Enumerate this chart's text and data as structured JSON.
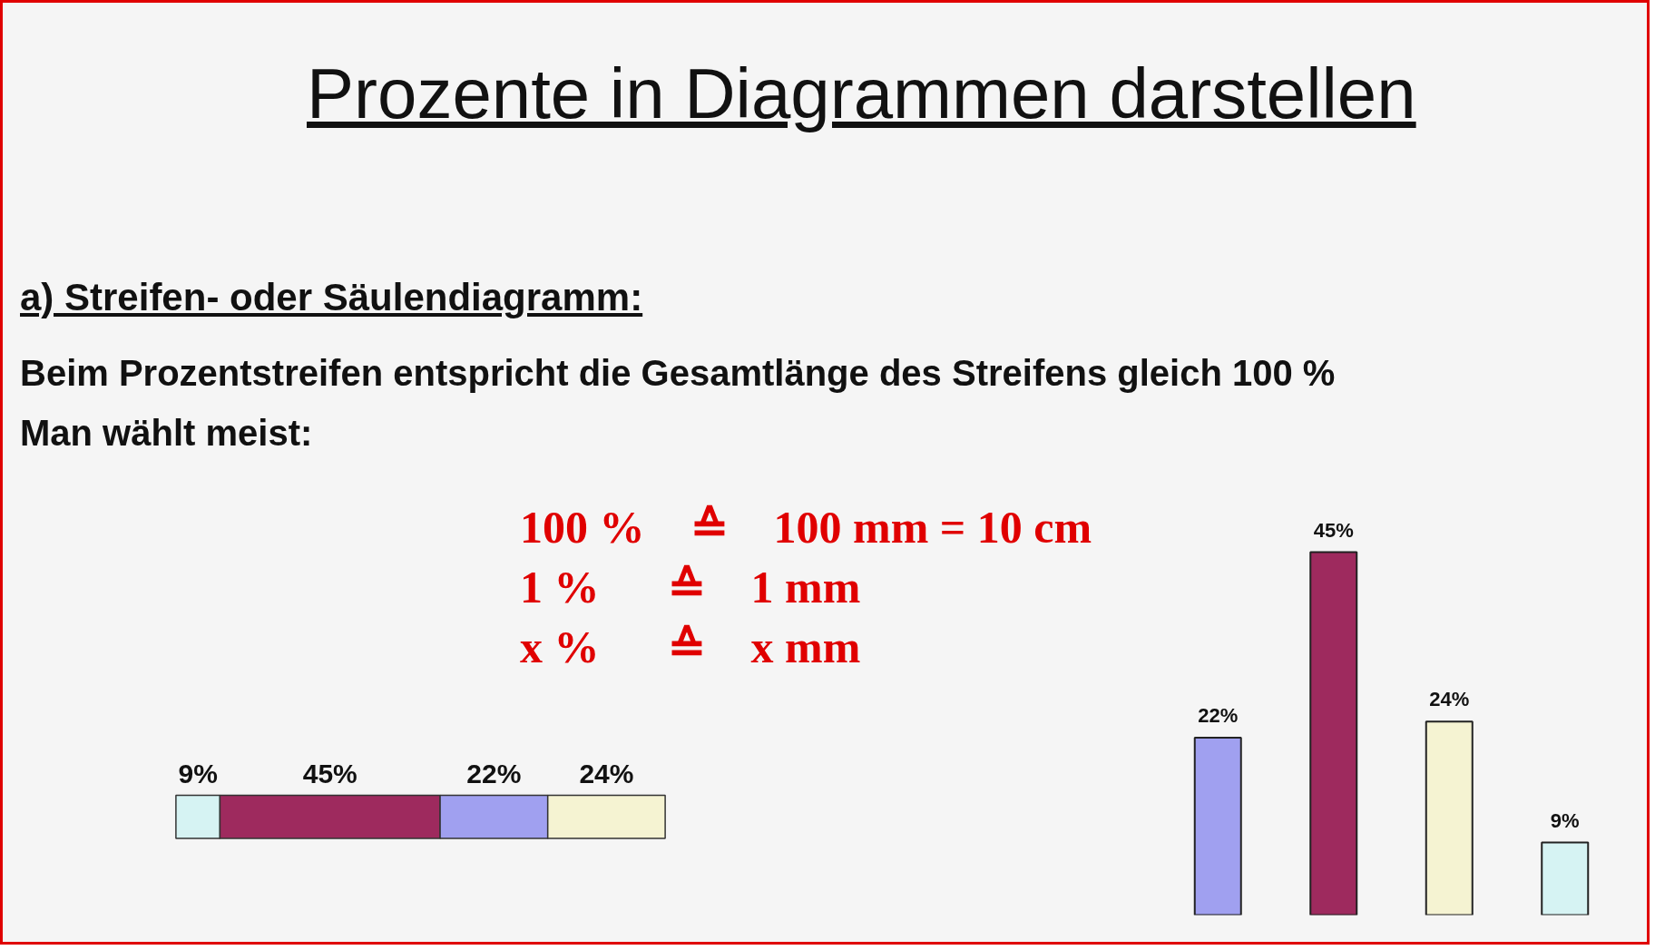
{
  "chart_data": [
    {
      "type": "bar",
      "orientation": "horizontal",
      "stacked": true,
      "title": "Prozente in Diagrammen darstellen",
      "subtitle": "a) Streifen- oder Säulendiagramm:",
      "annotations": [
        "Beim Prozentstreifen entspricht die Gesamtlänge des Streifens gleich 100 %",
        "Man wählt meist:",
        "100 %    ≙    100 mm = 10 cm",
        "1 %      ≙    1 mm",
        "x %      ≙    x mm"
      ],
      "categories": [
        null
      ],
      "series": [
        {
          "color": "#d6f3f3",
          "values": [
            9
          ],
          "value_labels": [
            "9%"
          ]
        },
        {
          "color": "#9e2a5e",
          "values": [
            45
          ],
          "value_labels": [
            "45%"
          ]
        },
        {
          "color": "#a0a0f0",
          "values": [
            22
          ],
          "value_labels": [
            "22%"
          ]
        },
        {
          "color": "#f5f3d2",
          "values": [
            24
          ],
          "value_labels": [
            "24%"
          ]
        }
      ]
    },
    {
      "type": "bar",
      "categories": [
        null,
        null,
        null,
        null
      ],
      "values": [
        22,
        45,
        24,
        9
      ],
      "colors": [
        "#a0a0f0",
        "#9e2a5e",
        "#f5f3d2",
        "#d6f3f3"
      ],
      "value_labels": [
        "22%",
        "45%",
        "24%",
        "9%"
      ]
    }
  ]
}
